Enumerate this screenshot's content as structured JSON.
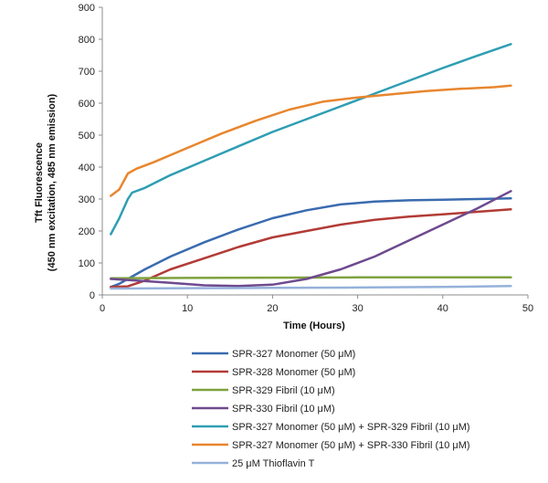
{
  "chart_data": {
    "type": "line",
    "xlabel": "Time (Hours)",
    "ylabel": "Tft Fluorescence",
    "ylabel_sub": "(450 nm excitation, 485 nm emission)",
    "xlim": [
      0,
      50
    ],
    "ylim": [
      0,
      900
    ],
    "xticks": [
      0,
      10,
      20,
      30,
      40,
      50
    ],
    "yticks": [
      0,
      100,
      200,
      300,
      400,
      500,
      600,
      700,
      800,
      900
    ],
    "grid": false,
    "legend_position": "bottom",
    "series": [
      {
        "name": "SPR-327 Monomer (50 μM)",
        "color": "#3A6BAF",
        "x": [
          1,
          2,
          3,
          5,
          8,
          12,
          16,
          20,
          24,
          28,
          32,
          36,
          40,
          44,
          48
        ],
        "y": [
          25,
          35,
          50,
          80,
          120,
          165,
          205,
          240,
          265,
          283,
          292,
          296,
          298,
          300,
          302
        ]
      },
      {
        "name": "SPR-328 Monomer (50 μM)",
        "color": "#B23B36",
        "x": [
          1,
          3,
          5,
          8,
          12,
          16,
          20,
          24,
          28,
          32,
          36,
          40,
          44,
          48
        ],
        "y": [
          25,
          27,
          45,
          80,
          115,
          150,
          180,
          200,
          220,
          235,
          245,
          252,
          260,
          268
        ]
      },
      {
        "name": "SPR-329 Fibril (10 μM)",
        "color": "#7EA23E",
        "x": [
          1,
          10,
          20,
          30,
          40,
          48
        ],
        "y": [
          52,
          53,
          54,
          55,
          55,
          55
        ]
      },
      {
        "name": "SPR-330 Fibril (10 μM)",
        "color": "#6E4A8E",
        "x": [
          1,
          4,
          8,
          12,
          16,
          20,
          24,
          28,
          32,
          36,
          40,
          44,
          48
        ],
        "y": [
          50,
          45,
          38,
          30,
          28,
          32,
          50,
          80,
          120,
          170,
          220,
          270,
          325
        ]
      },
      {
        "name": "SPR-327 Monomer (50 μM) + SPR-329 Fibril (10 μM)",
        "color": "#2F9EB3",
        "x": [
          1,
          2,
          3,
          3.5,
          5,
          8,
          12,
          16,
          20,
          24,
          28,
          32,
          36,
          40,
          44,
          48
        ],
        "y": [
          190,
          240,
          300,
          320,
          335,
          375,
          420,
          465,
          510,
          550,
          590,
          630,
          670,
          710,
          748,
          785
        ]
      },
      {
        "name": "SPR-327 Monomer (50 μM) + SPR-330 Fibril (10 μM)",
        "color": "#E8862E",
        "x": [
          1,
          2,
          3,
          4,
          6,
          10,
          14,
          18,
          22,
          26,
          30,
          34,
          38,
          42,
          46,
          48
        ],
        "y": [
          310,
          330,
          380,
          395,
          415,
          460,
          505,
          545,
          580,
          605,
          618,
          628,
          638,
          645,
          650,
          655
        ]
      },
      {
        "name": "25 μM Thioflavin T",
        "color": "#95B1DA",
        "x": [
          1,
          10,
          20,
          30,
          40,
          48
        ],
        "y": [
          20,
          21,
          22,
          23,
          25,
          28
        ]
      }
    ]
  }
}
